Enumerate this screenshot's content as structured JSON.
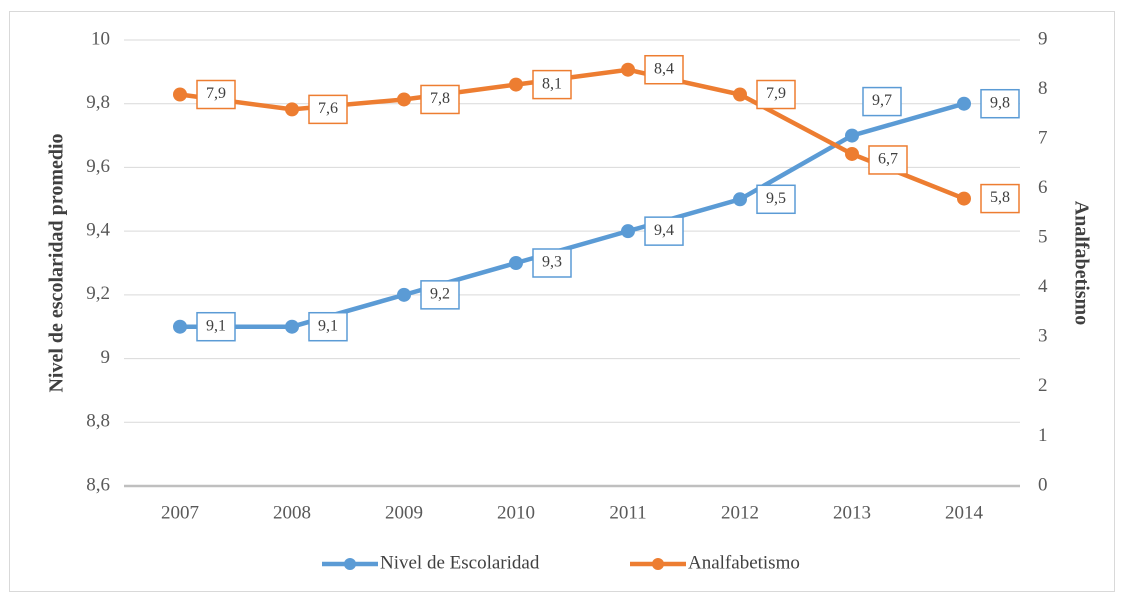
{
  "chart_data": {
    "type": "line",
    "categories": [
      "2007",
      "2008",
      "2009",
      "2010",
      "2011",
      "2012",
      "2013",
      "2014"
    ],
    "series": [
      {
        "name": "Nivel de Escolaridad",
        "color": "#5b9bd5",
        "values": [
          9.1,
          9.1,
          9.2,
          9.3,
          9.4,
          9.5,
          9.7,
          9.8
        ],
        "value_labels": [
          "9,1",
          "9,1",
          "9,2",
          "9,3",
          "9,4",
          "9,5",
          "9,7",
          "9,8"
        ]
      },
      {
        "name": "Analfabetismo",
        "color": "#ed7d31",
        "axis": "y2",
        "values": [
          7.9,
          7.6,
          7.8,
          8.1,
          8.4,
          7.9,
          6.7,
          5.8
        ],
        "value_labels": [
          "7,9",
          "7,6",
          "7,8",
          "8,1",
          "8,4",
          "7,9",
          "6,7",
          "5,8"
        ]
      }
    ],
    "ylabel": "Nivel de escolaridad promedio",
    "y2label": "Analfabetismo",
    "ylim": [
      8.6,
      10
    ],
    "yticks": [
      {
        "value": 8.6,
        "label": "8,6"
      },
      {
        "value": 8.8,
        "label": "8,8"
      },
      9,
      {
        "value": 9.2,
        "label": "9,2"
      },
      {
        "value": 9.4,
        "label": "9,4"
      },
      {
        "value": 9.6,
        "label": "9,6"
      },
      {
        "value": 9.8,
        "label": "9,8"
      },
      10
    ],
    "y2lim": [
      0,
      9
    ],
    "y2ticks": [
      0,
      1,
      2,
      3,
      4,
      5,
      6,
      7,
      8,
      9
    ],
    "grid": true,
    "legend": "bottom"
  }
}
